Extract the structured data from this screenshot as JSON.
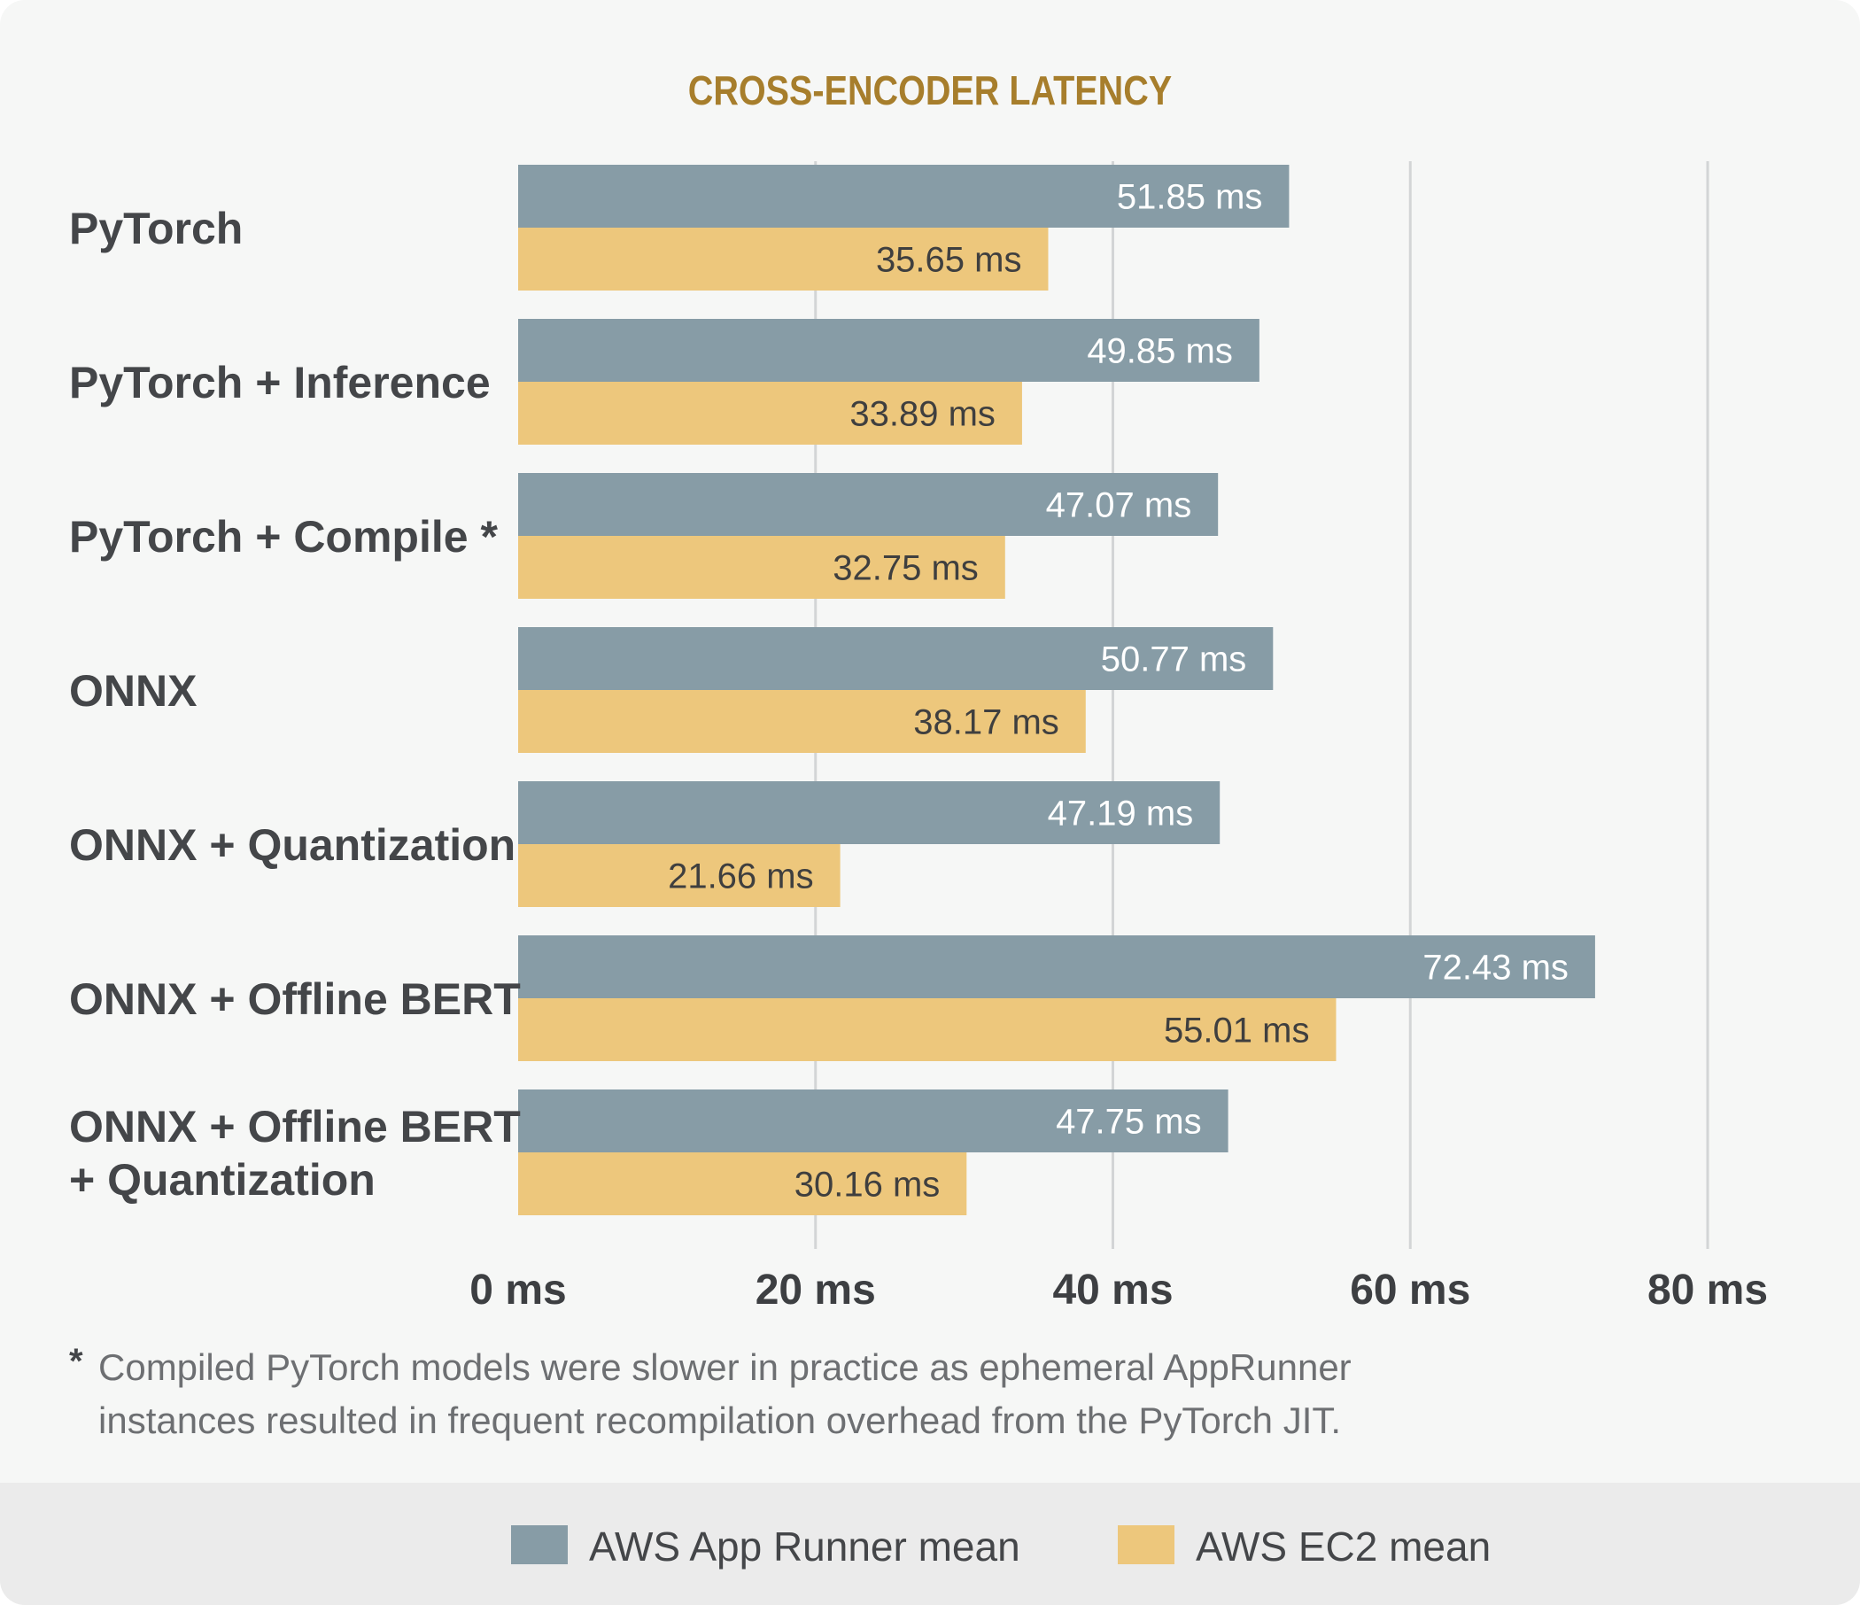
{
  "chart_data": {
    "type": "bar",
    "orientation": "horizontal",
    "title": "CROSS-ENCODER LATENCY",
    "categories": [
      [
        "PyTorch"
      ],
      [
        "PyTorch + Inference"
      ],
      [
        "PyTorch + Compile *"
      ],
      [
        "ONNX"
      ],
      [
        "ONNX + Quantization"
      ],
      [
        "ONNX + Offline BERT"
      ],
      [
        "ONNX + Offline BERT",
        "+ Quantization"
      ]
    ],
    "series": [
      {
        "name": "AWS App Runner mean",
        "color": "#879ca6",
        "values": [
          51.85,
          49.85,
          47.07,
          50.77,
          47.19,
          72.43,
          47.75
        ],
        "labels": [
          "51.85 ms",
          "49.85 ms",
          "47.07 ms",
          "50.77 ms",
          "47.19 ms",
          "72.43 ms",
          "47.75 ms"
        ]
      },
      {
        "name": "AWS EC2 mean",
        "color": "#edc77c",
        "values": [
          35.65,
          33.89,
          32.75,
          38.17,
          21.66,
          55.01,
          30.16
        ],
        "labels": [
          "35.65 ms",
          "33.89 ms",
          "32.75 ms",
          "38.17 ms",
          "21.66 ms",
          "55.01 ms",
          "30.16 ms"
        ]
      }
    ],
    "xlim": [
      0,
      80
    ],
    "xticks": [
      0,
      20,
      40,
      60,
      80
    ],
    "xtick_labels": [
      "0 ms",
      "20 ms",
      "40 ms",
      "60 ms",
      "80 ms"
    ],
    "grid": "vertical",
    "legend_position": "bottom"
  },
  "footnote": {
    "marker": "*",
    "lines": [
      "Compiled PyTorch models were slower in practice as ephemeral AppRunner",
      "instances resulted in frequent recompilation overhead from the PyTorch JIT."
    ]
  }
}
